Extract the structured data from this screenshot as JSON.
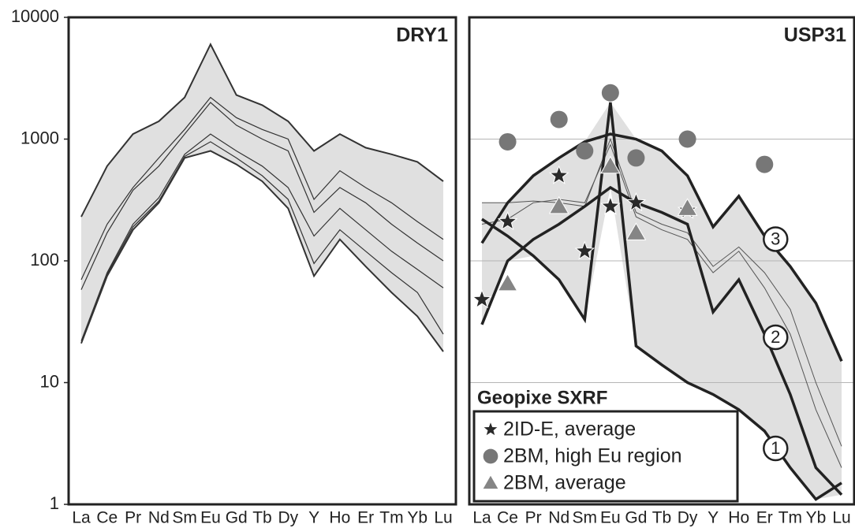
{
  "chart_data": [
    {
      "type": "line",
      "title": "DRY1",
      "log_scale": true,
      "grid": false,
      "envelope": true,
      "envelope_color": "#e0e0e0",
      "categories": [
        "La",
        "Ce",
        "Pr",
        "Nd",
        "Sm",
        "Eu",
        "Gd",
        "Tb",
        "Dy",
        "Y",
        "Ho",
        "Er",
        "Tm",
        "Yb",
        "Lu"
      ],
      "ylim": [
        1,
        10000
      ],
      "yticks": [
        1,
        10,
        100,
        1000,
        10000
      ],
      "lines": [
        {
          "color": "#333333",
          "width": 2,
          "values": [
            230,
            600,
            1100,
            1400,
            2200,
            6000,
            2300,
            1900,
            1400,
            800,
            1100,
            850,
            750,
            650,
            450
          ]
        },
        {
          "color": "#333333",
          "width": 1.2,
          "values": [
            70,
            200,
            400,
            700,
            1200,
            2200,
            1500,
            1200,
            1000,
            320,
            550,
            400,
            300,
            210,
            150
          ]
        },
        {
          "color": "#333333",
          "width": 1.2,
          "values": [
            58,
            170,
            380,
            600,
            1100,
            2000,
            1300,
            1000,
            800,
            250,
            400,
            300,
            200,
            140,
            100
          ]
        },
        {
          "color": "#333333",
          "width": 1.2,
          "values": [
            22,
            80,
            200,
            330,
            750,
            1100,
            800,
            600,
            400,
            160,
            270,
            180,
            120,
            85,
            60
          ]
        },
        {
          "color": "#333333",
          "width": 1.2,
          "values": [
            21,
            78,
            190,
            310,
            720,
            950,
            700,
            500,
            320,
            95,
            180,
            120,
            80,
            55,
            25
          ]
        },
        {
          "color": "#333333",
          "width": 2,
          "values": [
            21,
            75,
            180,
            300,
            700,
            800,
            620,
            450,
            270,
            75,
            150,
            90,
            55,
            35,
            18
          ]
        }
      ]
    },
    {
      "type": "line",
      "title": "USP31",
      "log_scale": true,
      "grid": true,
      "envelope": true,
      "envelope_color": "#e0e0e0",
      "categories": [
        "La",
        "Ce",
        "Pr",
        "Nd",
        "Sm",
        "Eu",
        "Gd",
        "Tb",
        "Dy",
        "Y",
        "Ho",
        "Er",
        "Tm",
        "Yb",
        "Lu"
      ],
      "ylim": [
        1,
        10000
      ],
      "yticks": [
        1,
        10,
        100,
        1000,
        10000
      ],
      "lines": [
        {
          "color": "#555555",
          "width": 1,
          "values": [
            300,
            300,
            310,
            300,
            280,
            1000,
            250,
            200,
            170,
            90,
            130,
            80,
            40,
            10,
            3
          ]
        },
        {
          "color": "#555555",
          "width": 1,
          "values": [
            200,
            220,
            300,
            320,
            300,
            900,
            230,
            180,
            150,
            80,
            120,
            60,
            25,
            6,
            2
          ]
        },
        {
          "color": "#222222",
          "width": 3.5,
          "label": "3",
          "values": [
            140,
            300,
            500,
            700,
            950,
            1100,
            1000,
            800,
            500,
            190,
            340,
            160,
            90,
            45,
            15
          ]
        },
        {
          "color": "#222222",
          "width": 3.5,
          "label": "2",
          "values": [
            30,
            100,
            150,
            200,
            280,
            400,
            300,
            250,
            200,
            38,
            70,
            25,
            8,
            2,
            1.2
          ]
        },
        {
          "color": "#222222",
          "width": 3.5,
          "label": "1",
          "values": [
            220,
            160,
            110,
            70,
            33,
            2000,
            20,
            14,
            10,
            8,
            6,
            4,
            2,
            1.1,
            1.5
          ]
        }
      ],
      "legend_title": "Geopixe SXRF",
      "series": [
        {
          "name": "2ID-E, average",
          "marker": "star",
          "color": "#2a2a2a",
          "values": [
            48,
            210,
            null,
            500,
            120,
            280,
            300,
            null,
            260,
            null,
            null,
            null,
            null,
            null,
            null
          ]
        },
        {
          "name": "2BM, high Eu region",
          "marker": "circle",
          "color": "#777777",
          "values": [
            null,
            950,
            null,
            1450,
            800,
            2400,
            700,
            null,
            1000,
            null,
            null,
            620,
            null,
            null,
            null
          ]
        },
        {
          "name": "2BM, average",
          "marker": "triangle",
          "color": "#858585",
          "values": [
            null,
            65,
            null,
            280,
            null,
            600,
            170,
            null,
            270,
            null,
            null,
            null,
            null,
            null,
            null
          ]
        }
      ]
    }
  ]
}
